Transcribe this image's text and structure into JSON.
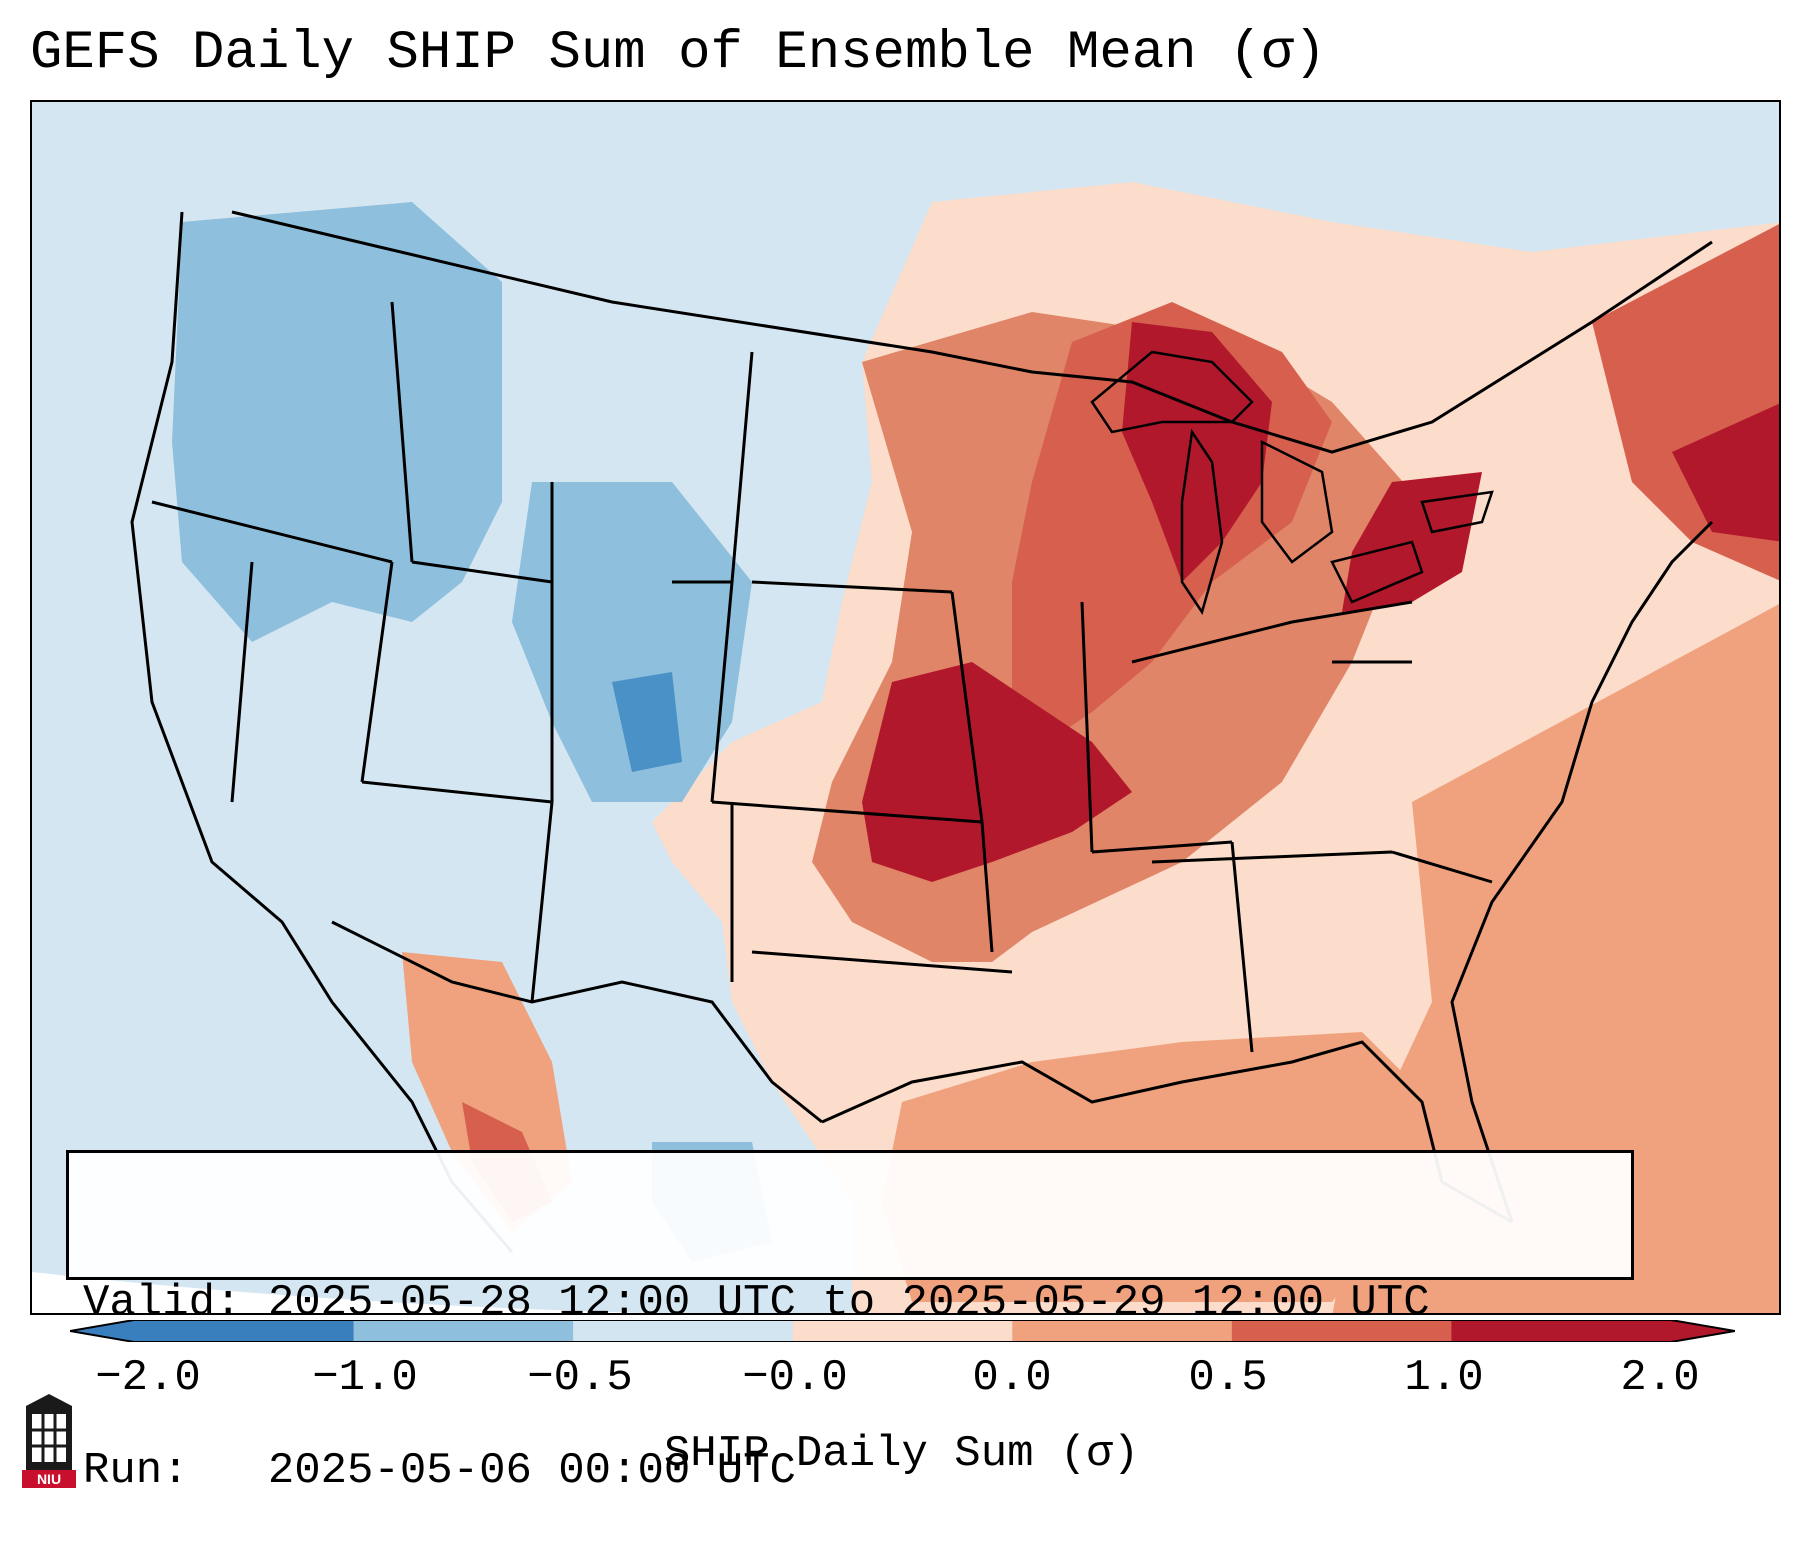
{
  "title": "GEFS Daily SHIP Sum of Ensemble Mean (σ)",
  "info": {
    "valid_line": "Valid: 2025-05-28 12:00 UTC to 2025-05-29 12:00 UTC",
    "run_line": "Run:   2025-05-06 00:00 UTC"
  },
  "colorbar": {
    "label": "SHIP Daily Sum (σ)",
    "ticks": [
      "−2.0",
      "−1.0",
      "−0.5",
      "−0.0",
      "0.0",
      "0.5",
      "1.0",
      "2.0"
    ],
    "colors": [
      "#3a7fbd",
      "#8ebfdc",
      "#d3e5f0",
      "#ffffff",
      "#fcdccb",
      "#f0a27e",
      "#d6604d",
      "#b2182b"
    ]
  },
  "logo": {
    "text": "NIU",
    "name": "niu-logo"
  }
}
